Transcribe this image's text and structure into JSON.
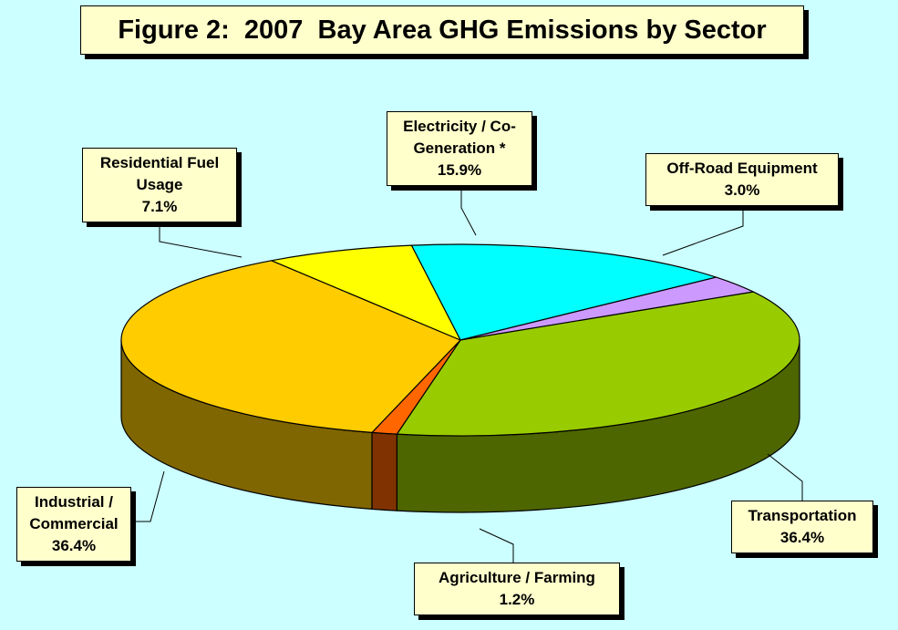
{
  "figure": {
    "title": "Figure 2:  2007  Bay Area GHG Emissions by Sector"
  },
  "chart_data": {
    "type": "pie",
    "title": "Figure 2:  2007  Bay Area GHG Emissions by Sector",
    "unit": "%",
    "slices": [
      {
        "name": "Electricity / Co-Generation *",
        "name_lines": [
          "Electricity / Co-",
          "Generation *"
        ],
        "value": 15.9,
        "label": "15.9%",
        "color": "#00ffff",
        "side_color": "#008080"
      },
      {
        "name": "Off-Road Equipment",
        "name_lines": [
          "Off-Road Equipment"
        ],
        "value": 3.0,
        "label": "3.0%",
        "color": "#cc99ff",
        "side_color": "#664c80"
      },
      {
        "name": "Transportation",
        "name_lines": [
          "Transportation"
        ],
        "value": 36.4,
        "label": "36.4%",
        "color": "#99cc00",
        "side_color": "#4d6600"
      },
      {
        "name": "Agriculture / Farming",
        "name_lines": [
          "Agriculture / Farming"
        ],
        "value": 1.2,
        "label": "1.2%",
        "color": "#ff6600",
        "side_color": "#803300"
      },
      {
        "name": "Industrial / Commercial",
        "name_lines": [
          "Industrial /",
          "Commercial"
        ],
        "value": 36.4,
        "label": "36.4%",
        "color": "#ffcc00",
        "side_color": "#806600"
      },
      {
        "name": "Residential Fuel Usage",
        "name_lines": [
          "Residential Fuel",
          "Usage"
        ],
        "value": 7.1,
        "label": "7.1%",
        "color": "#ffff00",
        "side_color": "#808000"
      }
    ],
    "legend": "none",
    "style": "3d-pie"
  }
}
